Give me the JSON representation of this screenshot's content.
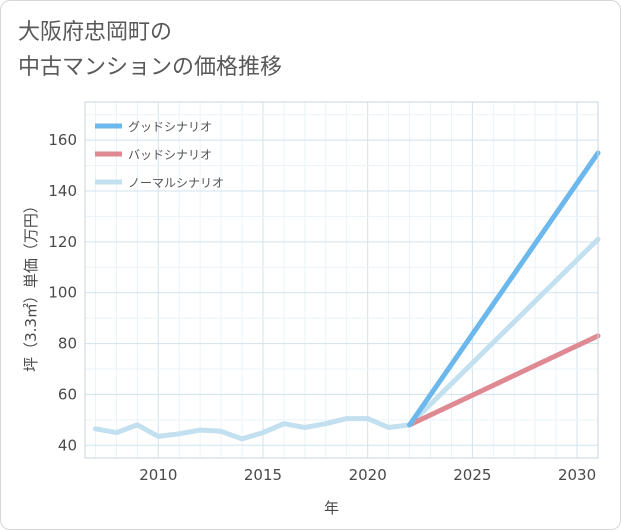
{
  "title_line1": "大阪府忠岡町の",
  "title_line2": "中古マンションの価格推移",
  "chart_data": {
    "type": "line",
    "xlabel": "年",
    "ylabel": "坪（3.3㎡）単価（万円）",
    "xlim": [
      2006.5,
      2031
    ],
    "ylim": [
      35,
      175
    ],
    "x_ticks": [
      2010,
      2015,
      2020,
      2025,
      2030
    ],
    "y_ticks": [
      40,
      60,
      80,
      100,
      120,
      140,
      160
    ],
    "grid": true,
    "legend_position": "top-left",
    "series": [
      {
        "name": "グッドシナリオ",
        "color": "#6cb8ec",
        "x": [
          2022,
          2031
        ],
        "y": [
          48,
          155
        ]
      },
      {
        "name": "バッドシナリオ",
        "color": "#df8a93",
        "x": [
          2022,
          2031
        ],
        "y": [
          48,
          83
        ]
      },
      {
        "name": "ノーマルシナリオ",
        "color": "#c2e0ef",
        "x": [
          2007,
          2008,
          2009,
          2010,
          2011,
          2012,
          2013,
          2014,
          2015,
          2016,
          2017,
          2018,
          2019,
          2020,
          2021,
          2022,
          2031
        ],
        "y": [
          46.5,
          45,
          48,
          43.5,
          44.5,
          46,
          45.5,
          42.5,
          45,
          48.5,
          47,
          48.5,
          50.5,
          50.5,
          47,
          48,
          121
        ]
      }
    ]
  }
}
